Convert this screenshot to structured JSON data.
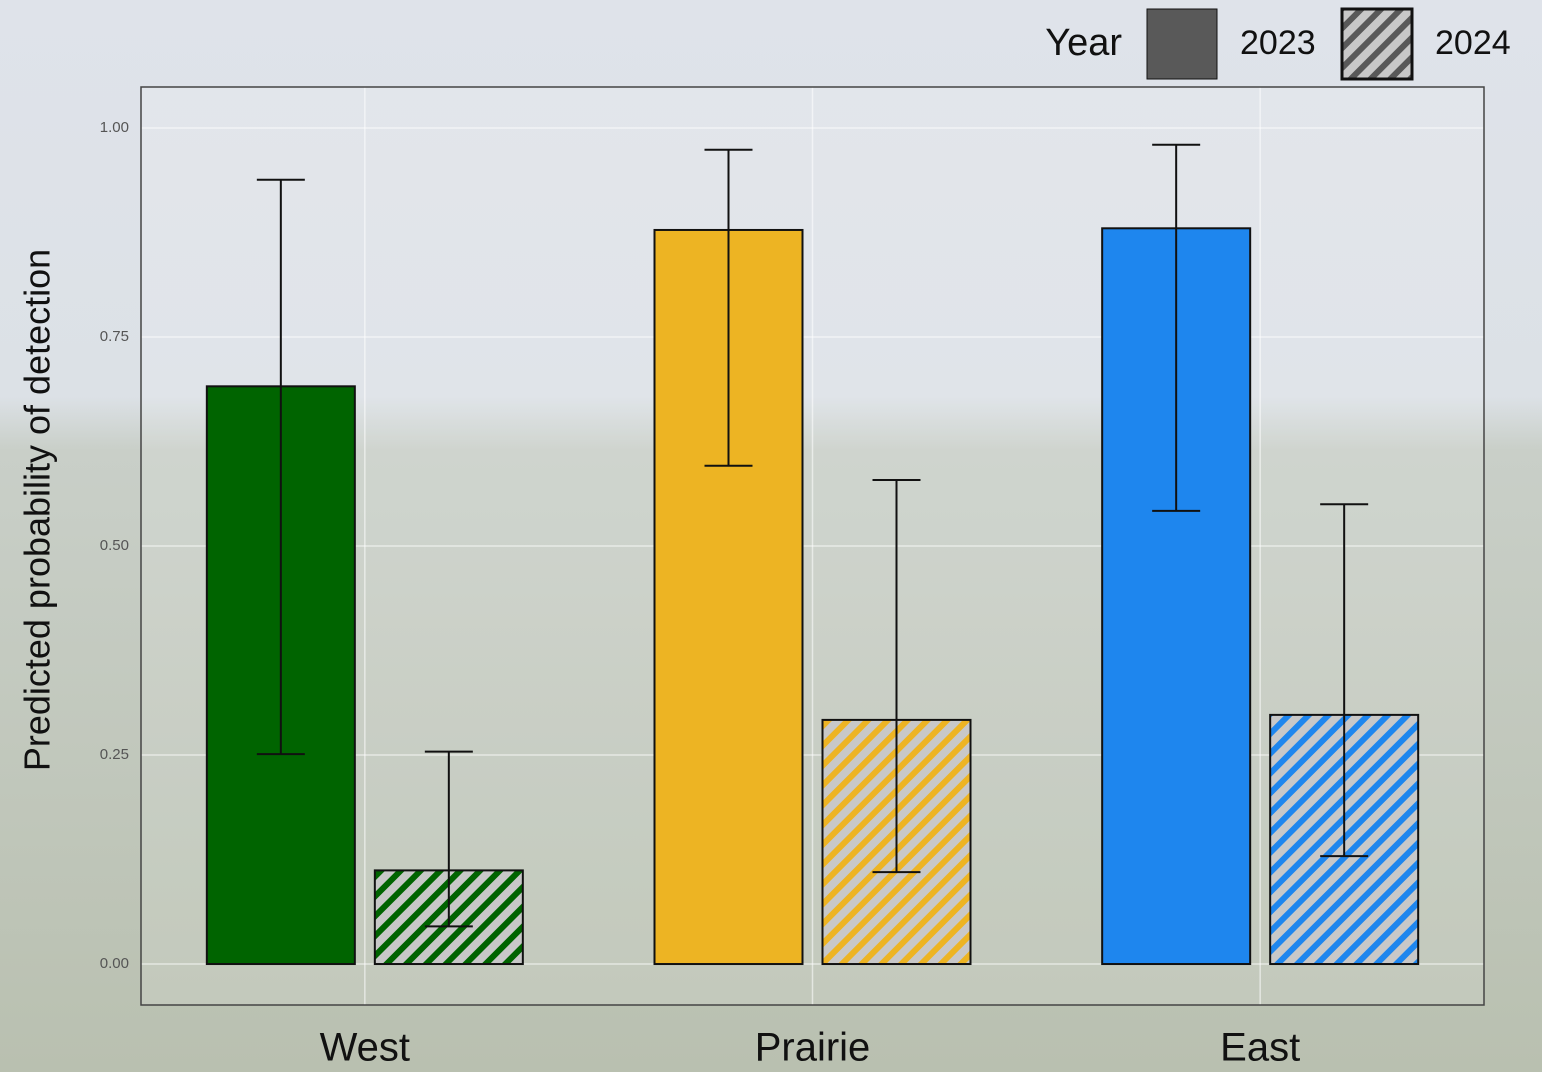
{
  "chart_data": {
    "type": "bar",
    "y_label": "Predicted probability of detection",
    "categories": [
      "West",
      "Prairie",
      "East"
    ],
    "category_colors": [
      "#006400",
      "#EDB423",
      "#1E86EE"
    ],
    "legend_title": "Year",
    "legend_position": "top-right",
    "series": [
      {
        "name": "2023",
        "color": "#595959",
        "hatch": false,
        "values": [
          0.691,
          0.878,
          0.88
        ],
        "lower": [
          0.251,
          0.596,
          0.542
        ],
        "upper": [
          0.938,
          0.974,
          0.98
        ]
      },
      {
        "name": "2024",
        "color": "#595959",
        "hatch": true,
        "values": [
          0.112,
          0.292,
          0.298
        ],
        "lower": [
          0.045,
          0.11,
          0.129
        ],
        "upper": [
          0.254,
          0.579,
          0.55
        ]
      }
    ],
    "ylim": [
      -0.049,
      1.049
    ],
    "yticks": [
      {
        "value": 0,
        "label": "0.00"
      },
      {
        "value": 0.25,
        "label": "0.25"
      },
      {
        "value": 0.5,
        "label": "0.50"
      },
      {
        "value": 0.75,
        "label": "0.75"
      },
      {
        "value": 1,
        "label": "1.00"
      }
    ],
    "grid": true
  }
}
